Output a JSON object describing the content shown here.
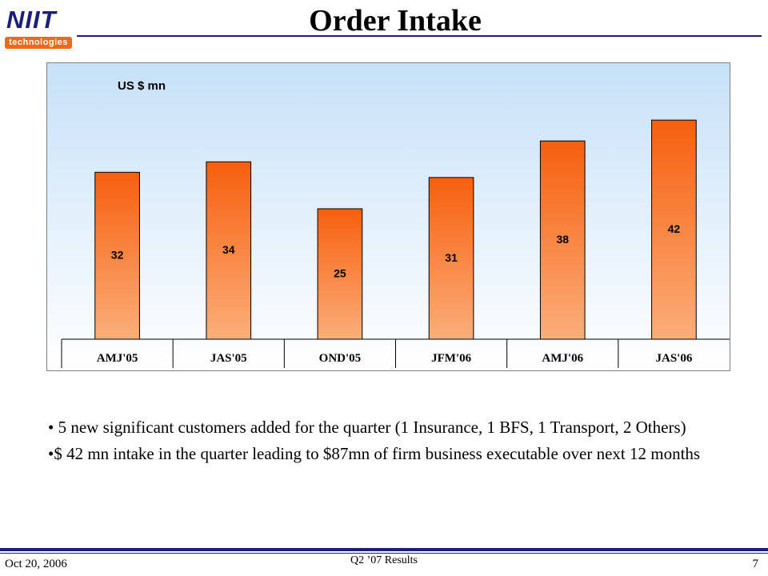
{
  "logo": {
    "main": "NIIT",
    "sub": "technologies"
  },
  "page": {
    "title": "Order Intake"
  },
  "colors": {
    "brand": "#1b1f7a",
    "accent": "#ee6a1a",
    "bar_top": "#f65f0e",
    "bar_bottom": "#fbae7a"
  },
  "chart_data": {
    "type": "bar",
    "title": "",
    "unit_label": "US $ mn",
    "xlabel": "",
    "ylabel": "",
    "categories": [
      "AMJ'05",
      "JAS'05",
      "OND'05",
      "JFM'06",
      "AMJ'06",
      "JAS'06"
    ],
    "values": [
      32,
      34,
      25,
      31,
      38,
      42
    ],
    "data_labels": [
      "32",
      "34",
      "25",
      "31",
      "38",
      "42"
    ],
    "ylim": [
      0,
      48
    ],
    "grid": false,
    "legend": "none"
  },
  "bullets": [
    "• 5 new significant customers added for the quarter (1 Insurance, 1 BFS, 1 Transport, 2 Others)",
    "•$ 42 mn intake in the quarter leading to $87mn of firm business executable over next 12 months"
  ],
  "footer": {
    "date": "Oct 20, 2006",
    "center": "Q2 ’07 Results",
    "page_number": "7"
  }
}
